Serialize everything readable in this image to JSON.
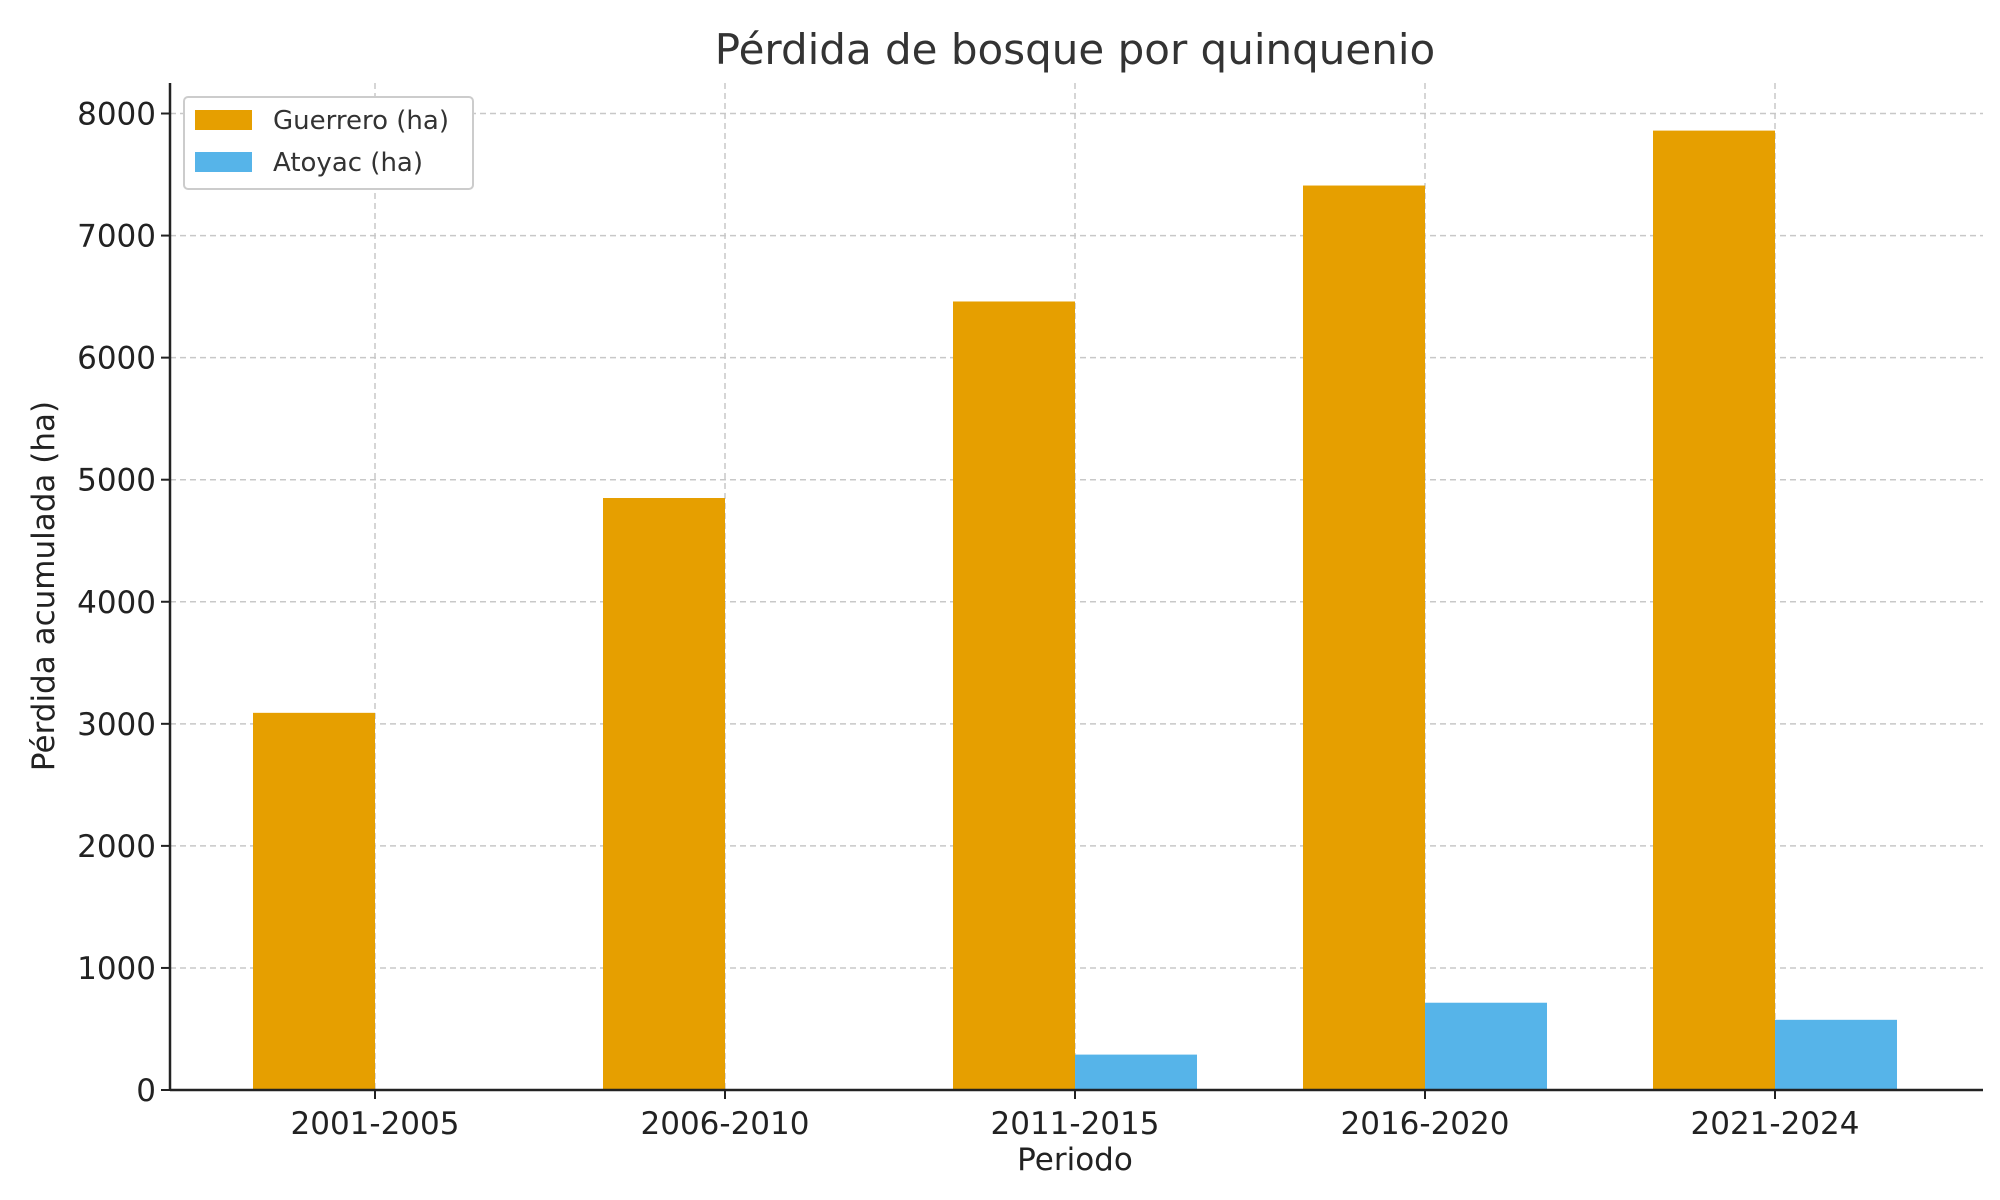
{
  "chart_data": {
    "type": "bar",
    "title": "Pérdida de bosque por quinquenio",
    "xlabel": "Periodo",
    "ylabel": "Pérdida acumulada (ha)",
    "categories": [
      "2001-2005",
      "2006-2010",
      "2011-2015",
      "2016-2020",
      "2021-2024"
    ],
    "series": [
      {
        "name": "Guerrero (ha)",
        "color": "#E69F00",
        "values": [
          3090,
          4850,
          6460,
          7410,
          7860
        ]
      },
      {
        "name": "Atoyac (ha)",
        "color": "#56B4E9",
        "values": [
          0,
          0,
          290,
          715,
          575
        ]
      }
    ],
    "ylim": [
      0,
      8250
    ],
    "yticks": [
      0,
      1000,
      2000,
      3000,
      4000,
      5000,
      6000,
      7000,
      8000
    ],
    "grid": true,
    "legend_position": "top-left"
  }
}
